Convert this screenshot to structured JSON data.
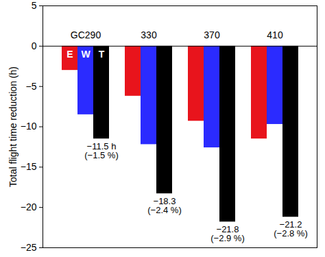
{
  "chart_data": {
    "type": "bar",
    "y_label": "Total flight time reduction (h)",
    "categories": [
      "GC290",
      "330",
      "370",
      "410"
    ],
    "series": [
      {
        "name": "E",
        "color": "#e8141c",
        "values": [
          -3.0,
          -6.2,
          -9.3,
          -11.5
        ]
      },
      {
        "name": "W",
        "color": "#2b2bff",
        "values": [
          -8.5,
          -12.2,
          -12.6,
          -9.7
        ]
      },
      {
        "name": "T",
        "color": "#000000",
        "values": [
          -11.5,
          -18.3,
          -21.8,
          -21.2
        ]
      }
    ],
    "ylim": [
      -25,
      5
    ],
    "yticks": [
      -25,
      -20,
      -15,
      -10,
      -5,
      0,
      5
    ],
    "annotations": [
      {
        "category": "GC290",
        "series": "T",
        "text": [
          "−11.5 h",
          "(−1.5 %)"
        ]
      },
      {
        "category": "330",
        "series": "T",
        "text": [
          "−18.3",
          "(−2.4 %)"
        ]
      },
      {
        "category": "370",
        "series": "T",
        "text": [
          "−21.8",
          "(−2.9 %)"
        ]
      },
      {
        "category": "410",
        "series": "T",
        "text": [
          "−21.2",
          "(−2.8 %)"
        ]
      }
    ]
  }
}
